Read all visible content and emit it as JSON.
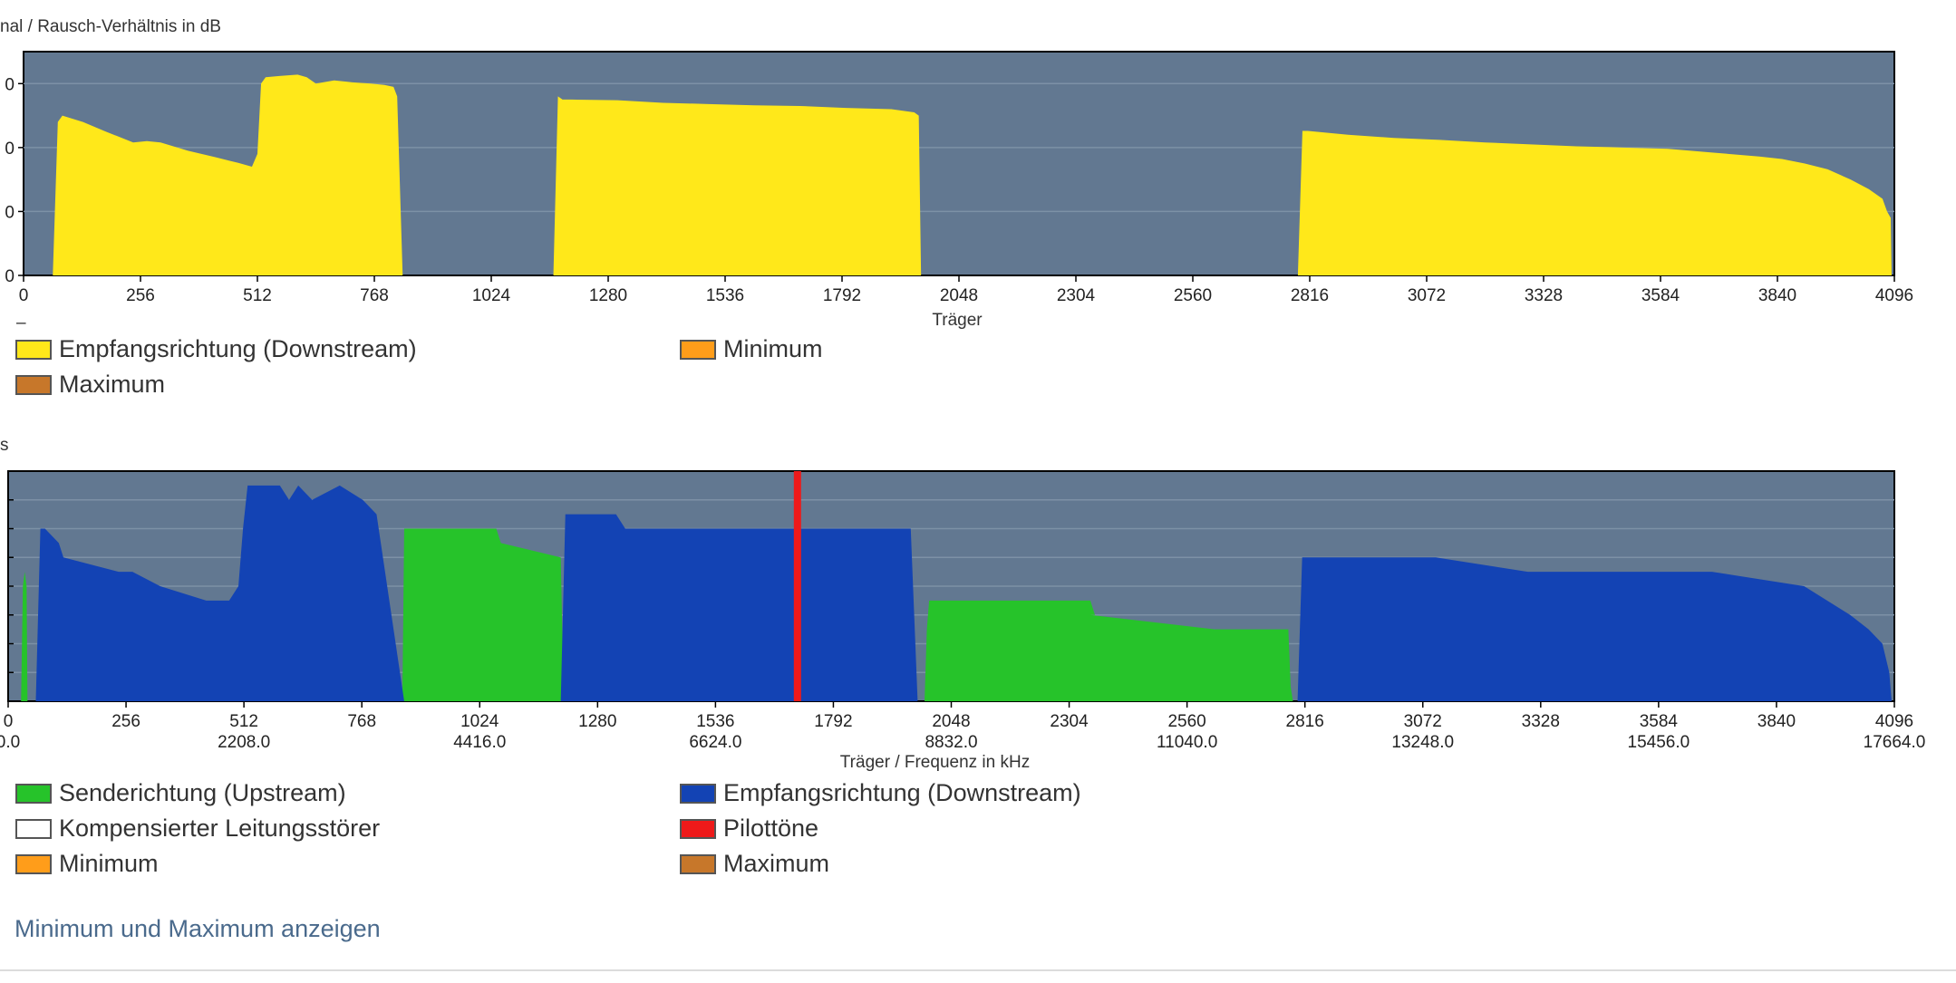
{
  "colors": {
    "plot_bg": "#627891",
    "gridline": "#7d91a6",
    "yellow": "#ffe81a",
    "upstream": "#26c32a",
    "downstream": "#1343b4",
    "pilot": "#ee1a1a",
    "minimum": "#ff9d1a",
    "maximum": "#c7772a",
    "compensated": "#ffffff"
  },
  "snr_chart": {
    "title": "nal / Rausch-Verhältnis in dB",
    "marker": "–",
    "xlabel": "Träger",
    "legend": [
      {
        "label": "Empfangsrichtung (Downstream)",
        "color": "#ffe81a"
      },
      {
        "label": "Minimum",
        "color": "#ff9d1a"
      },
      {
        "label": "Maximum",
        "color": "#c7772a"
      }
    ]
  },
  "bits_chart": {
    "title": "s",
    "xlabel": "Träger / Frequenz in kHz",
    "legend": [
      {
        "label": "Senderichtung (Upstream)",
        "color": "#26c32a"
      },
      {
        "label": "Empfangsrichtung (Downstream)",
        "color": "#1343b4"
      },
      {
        "label": "Kompensierter Leitungsstörer",
        "color": "#ffffff"
      },
      {
        "label": "Pilottöne",
        "color": "#ee1a1a"
      },
      {
        "label": "Minimum",
        "color": "#ff9d1a"
      },
      {
        "label": "Maximum",
        "color": "#c7772a"
      }
    ]
  },
  "toggle_link": "Minimum und Maximum anzeigen",
  "chart_data": [
    {
      "type": "area",
      "title": "nal / Rausch-Verhältnis in dB",
      "xlabel": "Träger",
      "ylabel": "",
      "xlim": [
        0,
        4096
      ],
      "x_ticks": [
        "0",
        "256",
        "512",
        "768",
        "1024",
        "1280",
        "1536",
        "1792",
        "2048",
        "2304",
        "2560",
        "2816",
        "3072",
        "3328",
        "3584",
        "3840",
        "4096"
      ],
      "y_tick_labels": [
        "0",
        "0",
        "0",
        "0"
      ],
      "ylim": [
        0,
        3.5
      ],
      "legend_position": "bottom",
      "series": [
        {
          "name": "Empfangsrichtung (Downstream)",
          "x": [
            64,
            75,
            85,
            130,
            180,
            240,
            270,
            300,
            360,
            420,
            470,
            500,
            512,
            520,
            530,
            560,
            600,
            620,
            640,
            680,
            720,
            760,
            790,
            810,
            818,
            830,
            1160,
            1170,
            1180,
            1200,
            1300,
            1400,
            1500,
            1600,
            1700,
            1800,
            1900,
            1950,
            1960,
            1965,
            2790,
            2800,
            2812,
            2900,
            3000,
            3100,
            3200,
            3300,
            3400,
            3500,
            3600,
            3700,
            3800,
            3850,
            3900,
            3950,
            4000,
            4040,
            4070,
            4080,
            4088,
            4090
          ],
          "y": [
            0,
            2.4,
            2.5,
            2.4,
            2.25,
            2.08,
            2.1,
            2.08,
            1.95,
            1.85,
            1.76,
            1.7,
            1.9,
            3.0,
            3.1,
            3.12,
            3.14,
            3.1,
            3.0,
            3.05,
            3.02,
            3.0,
            2.98,
            2.95,
            2.8,
            0,
            0,
            2.8,
            2.75,
            2.75,
            2.74,
            2.7,
            2.68,
            2.66,
            2.65,
            2.62,
            2.6,
            2.55,
            2.5,
            0,
            0,
            2.26,
            2.26,
            2.2,
            2.15,
            2.12,
            2.08,
            2.05,
            2.02,
            2.0,
            1.98,
            1.92,
            1.86,
            1.82,
            1.75,
            1.66,
            1.5,
            1.35,
            1.2,
            1.0,
            0.9,
            0
          ]
        }
      ]
    },
    {
      "type": "area",
      "title": "s",
      "xlabel": "Träger / Frequenz in kHz",
      "ylabel": "",
      "xlim": [
        0,
        4096
      ],
      "ylim": [
        0,
        16
      ],
      "x_ticks": [
        "0",
        "256",
        "512",
        "768",
        "1024",
        "1280",
        "1536",
        "1792",
        "2048",
        "2304",
        "2560",
        "2816",
        "3072",
        "3328",
        "3584",
        "3840",
        "4096"
      ],
      "x_ticks_khz": [
        "0.0",
        "2208.0",
        "4416.0",
        "6624.0",
        "8832.0",
        "11040.0",
        "13248.0",
        "15456.0",
        "17664.0"
      ],
      "legend_position": "bottom",
      "series": [
        {
          "name": "Senderichtung (Upstream)",
          "x": [
            28,
            32,
            36,
            40,
            42,
            856,
            860,
            885,
            1060,
            1070,
            1200,
            1205,
            1210,
            1210,
            1990,
            1995,
            2000,
            2350,
            2360,
            2350,
            2620,
            2630,
            2780,
            2785,
            2790
          ],
          "y": [
            0,
            8,
            9,
            8,
            0,
            0,
            12,
            12,
            12,
            11,
            10,
            2,
            0,
            null,
            0,
            5,
            7,
            7,
            6,
            6,
            5,
            5,
            5,
            1,
            0
          ]
        },
        {
          "name": "Empfangsrichtung (Downstream)",
          "x": [
            60,
            70,
            80,
            110,
            120,
            240,
            270,
            330,
            430,
            480,
            500,
            510,
            520,
            590,
            610,
            630,
            660,
            720,
            770,
            800,
            860,
            862,
            1200,
            1210,
            1225,
            1270,
            1300,
            1320,
            1340,
            1400,
            1700,
            1720,
            1760,
            1960,
            1975,
            2800,
            2810,
            2830,
            2900,
            3100,
            3300,
            3500,
            3700,
            3900,
            3950,
            4000,
            4040,
            4070,
            4085,
            4090
          ],
          "y": [
            0,
            12,
            12,
            11,
            10,
            9,
            9,
            8,
            7,
            7,
            8,
            12,
            15,
            15,
            14,
            15,
            14,
            15,
            14,
            13,
            0,
            0,
            0,
            13,
            13,
            13,
            13,
            13,
            12,
            12,
            12,
            12,
            12,
            12,
            0,
            0,
            10,
            10,
            10,
            10,
            9,
            9,
            9,
            8,
            7,
            6,
            5,
            4,
            2,
            0
          ]
        },
        {
          "name": "Pilottöne",
          "x": [
            1714
          ],
          "y": [
            16
          ]
        }
      ]
    }
  ]
}
